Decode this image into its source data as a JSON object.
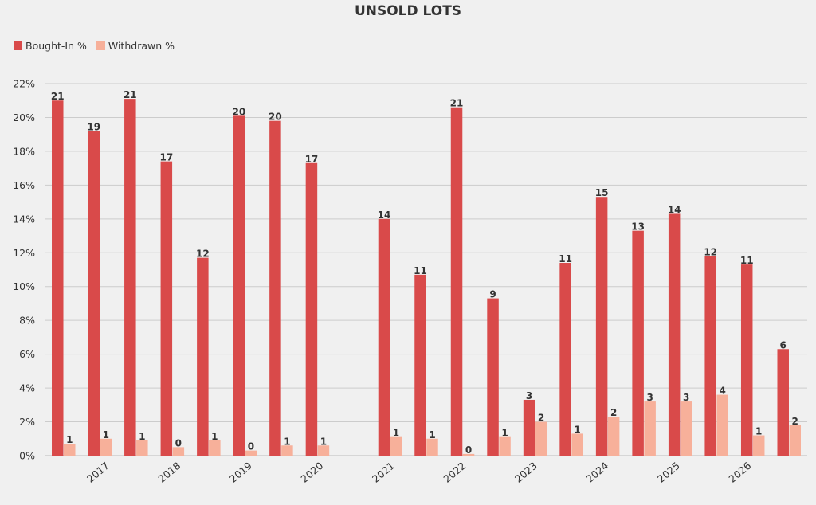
{
  "chart_data": {
    "type": "bar",
    "title": "UNSOLD LOTS",
    "xlabel": "",
    "ylabel": "",
    "ylim": [
      0,
      22
    ],
    "y_ticks": [
      {
        "value": 0,
        "label": "0%"
      },
      {
        "value": 2,
        "label": "2%"
      },
      {
        "value": 4,
        "label": "4%"
      },
      {
        "value": 6,
        "label": "6%"
      },
      {
        "value": 8,
        "label": "8%"
      },
      {
        "value": 10,
        "label": "10%"
      },
      {
        "value": 12,
        "label": "12%"
      },
      {
        "value": 14,
        "label": "14%"
      },
      {
        "value": 16,
        "label": "16%"
      },
      {
        "value": 18,
        "label": "18%"
      },
      {
        "value": 20,
        "label": "20%"
      },
      {
        "value": 22,
        "label": "22%"
      }
    ],
    "x_tick_labels": [
      "2017",
      "2018",
      "2019",
      "2020",
      "2021",
      "2022",
      "2023",
      "2024",
      "2025",
      "2026"
    ],
    "grid": true,
    "legend_position": "top-left",
    "series": [
      {
        "name": "Bought-In %",
        "color": "#d94a4a",
        "values": [
          21.0,
          19.2,
          21.1,
          17.4,
          11.7,
          20.1,
          19.8,
          17.3,
          null,
          14.0,
          10.7,
          20.6,
          9.3,
          3.3,
          11.4,
          15.3,
          13.3,
          14.3,
          11.8,
          11.3,
          6.3
        ],
        "labels": [
          "21",
          "19",
          "21",
          "17",
          "12",
          "20",
          "20",
          "17",
          "",
          "14",
          "11",
          "21",
          "9",
          "3",
          "11",
          "15",
          "13",
          "14",
          "12",
          "11",
          "6"
        ]
      },
      {
        "name": "Withdrawn %",
        "color": "#f7b09a",
        "values": [
          0.7,
          1.0,
          0.9,
          0.5,
          0.9,
          0.3,
          0.6,
          0.6,
          null,
          1.1,
          1.0,
          0.1,
          1.1,
          2.0,
          1.3,
          2.3,
          3.2,
          3.2,
          3.6,
          1.2,
          1.8
        ],
        "labels": [
          "1",
          "1",
          "1",
          "0",
          "1",
          "0",
          "1",
          "1",
          "",
          "1",
          "1",
          "0",
          "1",
          "2",
          "1",
          "2",
          "3",
          "3",
          "4",
          "1",
          "2"
        ]
      }
    ]
  }
}
